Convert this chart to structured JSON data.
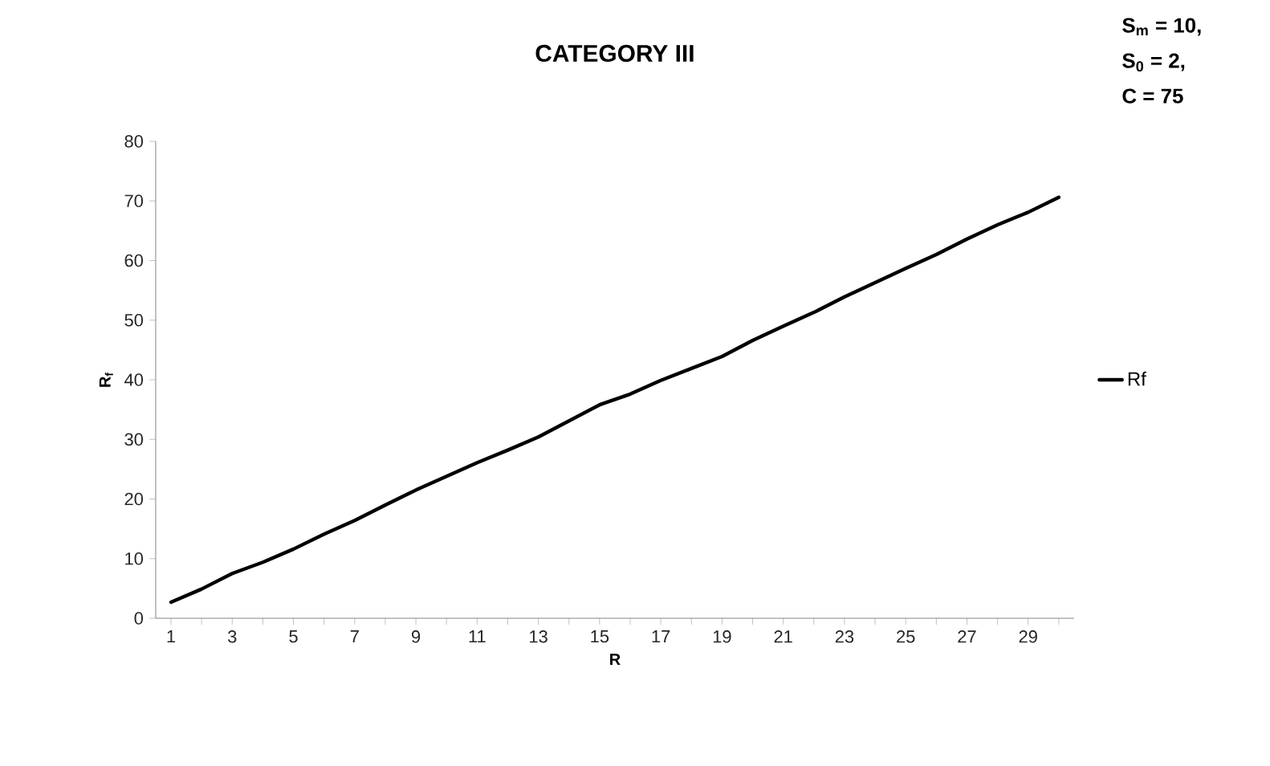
{
  "chart_data": {
    "type": "line",
    "title": "CATEGORY III",
    "xlabel": "R",
    "ylabel": "R$_{f}$",
    "annotations": [
      "S$_{m}$ = 10,",
      "S$_{0}$ = 2,",
      "C = 75"
    ],
    "categories": [
      "1",
      null,
      "3",
      null,
      "5",
      null,
      "7",
      null,
      "9",
      null,
      "11",
      null,
      "13",
      null,
      "15",
      null,
      "17",
      null,
      "19",
      null,
      "21",
      null,
      "23",
      null,
      "25",
      null,
      "27",
      null,
      "29",
      null
    ],
    "series": [
      {
        "name": "Rf",
        "color": "#000000",
        "values": [
          2.7,
          4.9,
          7.5,
          9.4,
          11.6,
          14.1,
          16.4,
          19.0,
          21.5,
          23.8,
          26.1,
          28.2,
          30.4,
          33.1,
          35.8,
          37.6,
          39.9,
          41.9,
          43.9,
          46.6,
          49.0,
          51.3,
          53.9,
          56.3,
          58.7,
          61.0,
          63.6,
          66.0,
          68.1,
          70.6
        ]
      }
    ],
    "ylim": [
      0,
      80
    ],
    "yticks": [
      0,
      10,
      20,
      30,
      40,
      50,
      60,
      70,
      80
    ],
    "legend": "right",
    "grid": false,
    "marker": "none",
    "line_style": "solid"
  }
}
